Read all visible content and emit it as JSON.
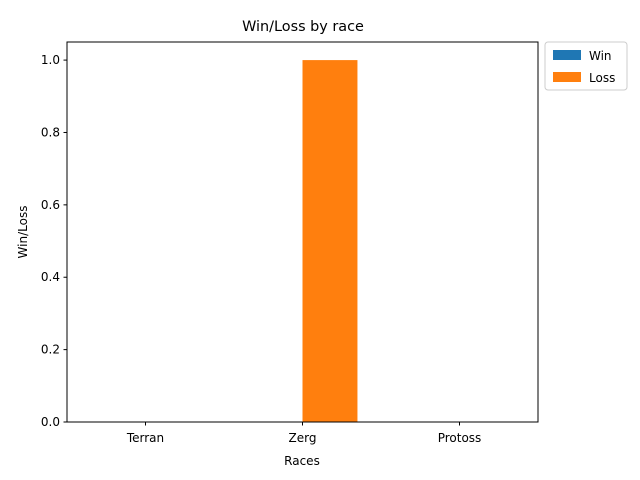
{
  "chart_data": {
    "type": "bar",
    "title": "Win/Loss by race",
    "xlabel": "Races",
    "ylabel": "Win/Loss",
    "categories": [
      "Terran",
      "Zerg",
      "Protoss"
    ],
    "series": [
      {
        "name": "Win",
        "values": [
          0,
          0,
          0
        ],
        "color": "#1f77b4"
      },
      {
        "name": "Loss",
        "values": [
          0,
          1,
          0
        ],
        "color": "#ff7f0e"
      }
    ],
    "ylim": [
      0,
      1.05
    ],
    "yticks": [
      "0.0",
      "0.2",
      "0.4",
      "0.6",
      "0.8",
      "1.0"
    ],
    "grid": false,
    "legend_position": "outside top-right"
  }
}
